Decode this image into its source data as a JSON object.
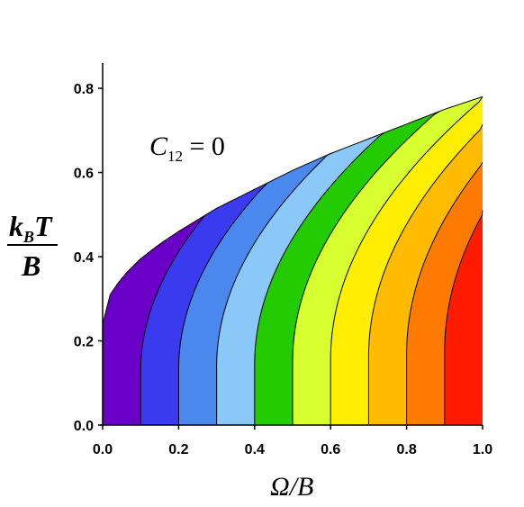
{
  "chart_data": {
    "type": "heatmap",
    "xlabel": "Ω/B",
    "ylabel": {
      "numerator_main": "k",
      "numerator_sub": "B",
      "numerator_tail": "T",
      "denominator": "B"
    },
    "annotation": {
      "main": "C",
      "sub": "12",
      "tail": " = 0"
    },
    "xlim": [
      0.0,
      1.0
    ],
    "ylim": [
      0.0,
      0.86
    ],
    "x_ticks": [
      "0.0",
      "0.2",
      "0.4",
      "0.6",
      "0.8",
      "1.0"
    ],
    "y_ticks": [
      "0.0",
      "0.2",
      "0.4",
      "0.6",
      "0.8"
    ],
    "x_tick_values": [
      0.0,
      0.2,
      0.4,
      0.6,
      0.8,
      1.0
    ],
    "y_tick_values": [
      0.0,
      0.2,
      0.4,
      0.6,
      0.8
    ],
    "grid": false,
    "legend": "none",
    "contour_levels": [
      0.0,
      0.1,
      0.2,
      0.3,
      0.4,
      0.5,
      0.6,
      0.7,
      0.8,
      0.9
    ],
    "colors": [
      "#6a00c8",
      "#3a3aee",
      "#4a88ee",
      "#8ac8f8",
      "#22cc00",
      "#d8ff30",
      "#ffee00",
      "#ffbb00",
      "#ff7a00",
      "#ff1a00"
    ],
    "boundary": {
      "x": [
        0.0,
        0.02,
        0.05,
        0.1,
        0.15,
        0.2,
        0.3,
        0.4,
        0.5,
        0.6,
        0.7,
        0.8,
        0.9,
        1.0
      ],
      "y": [
        0.24,
        0.31,
        0.35,
        0.395,
        0.43,
        0.46,
        0.515,
        0.56,
        0.605,
        0.645,
        0.68,
        0.715,
        0.75,
        0.78
      ]
    },
    "boundary_start_y": 0.25,
    "contour_bend_top_y": 0.35
  }
}
